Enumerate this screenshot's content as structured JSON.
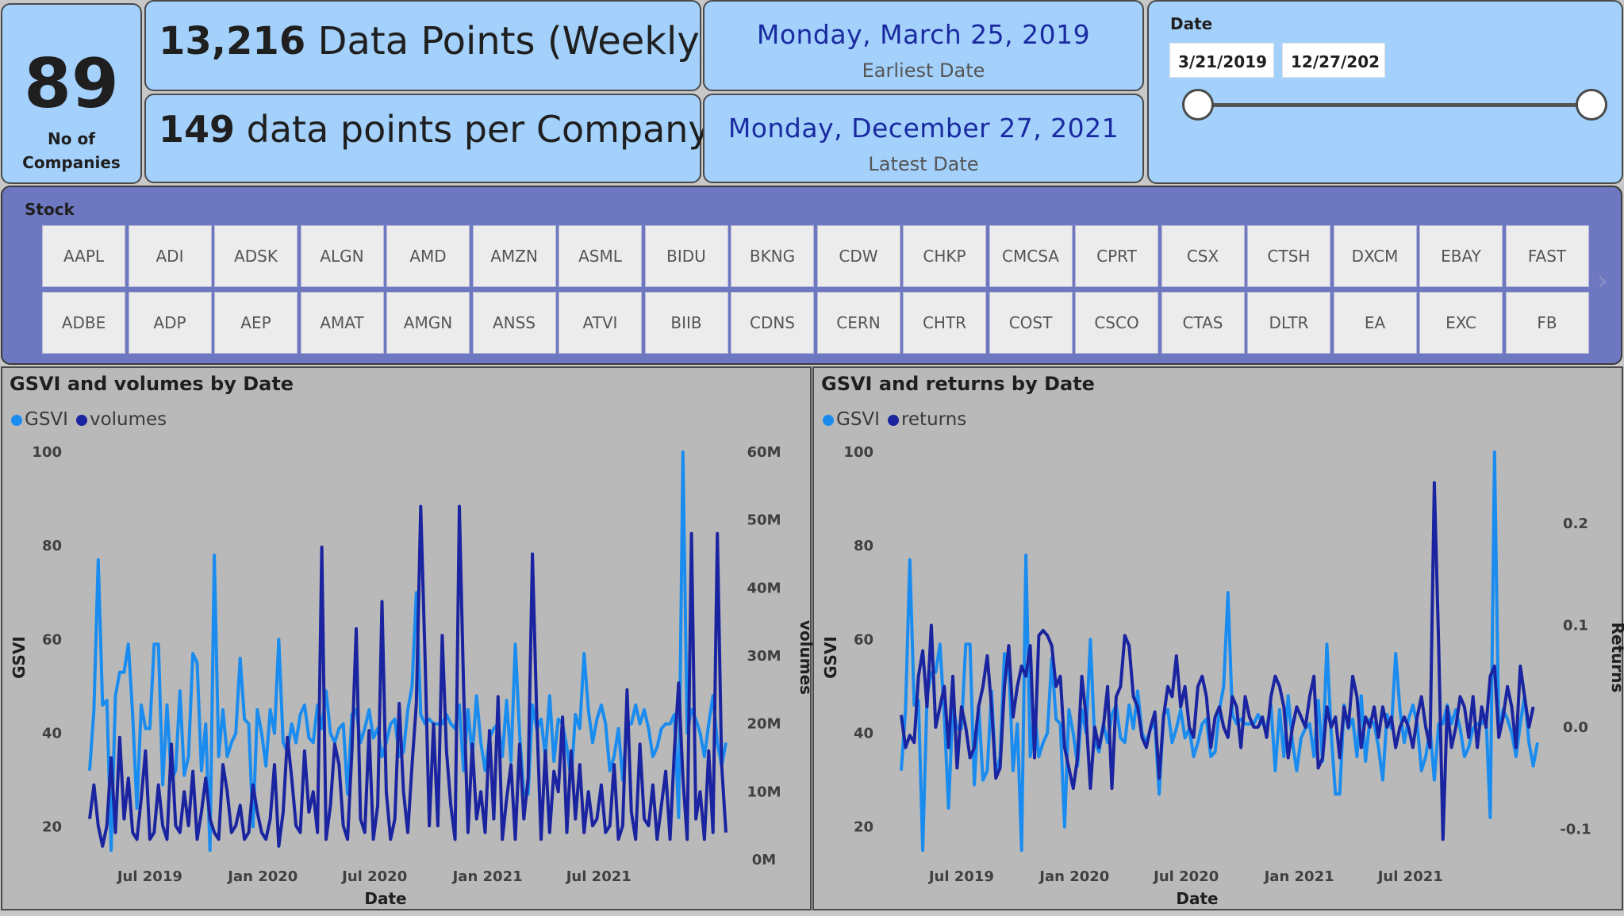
{
  "kpis": {
    "companies_value": "89",
    "companies_label": "No of Companies",
    "data_points_value": "13,216",
    "data_points_label": "Data Points (Weekly)",
    "per_company_value": "149",
    "per_company_label": "data points per Company",
    "earliest_date": "Monday, March 25, 2019",
    "earliest_label": "Earliest Date",
    "latest_date": "Monday, December 27, 2021",
    "latest_label": "Latest Date"
  },
  "date_slicer": {
    "label": "Date",
    "start": "3/21/2019",
    "end": "12/27/202",
    "range_fraction": [
      0.0,
      1.0
    ]
  },
  "stock_slicer": {
    "label": "Stock",
    "row1": [
      "AAPL",
      "ADI",
      "ADSK",
      "ALGN",
      "AMD",
      "AMZN",
      "ASML",
      "BIDU",
      "BKNG",
      "CDW",
      "CHKP",
      "CMCSA",
      "CPRT",
      "CSX",
      "CTSH",
      "DXCM",
      "EBAY",
      "FAST"
    ],
    "row2": [
      "ADBE",
      "ADP",
      "AEP",
      "AMAT",
      "AMGN",
      "ANSS",
      "ATVI",
      "BIIB",
      "CDNS",
      "CERN",
      "CHTR",
      "COST",
      "CSCO",
      "CTAS",
      "DLTR",
      "EA",
      "EXC",
      "FB"
    ],
    "next_icon": "chevron-right-icon"
  },
  "colors": {
    "gsvi": "#1a8cf0",
    "secondary": "#1a24a0",
    "card_bg": "#a3d1fc",
    "stock_bg": "#6e78c0"
  },
  "chart_data": [
    {
      "type": "line",
      "title": "GSVI and volumes by Date",
      "xlabel": "Date",
      "ylabel": "GSVI",
      "y2label": "volumes",
      "x_ticks": [
        "Jul 2019",
        "Jan 2020",
        "Jul 2020",
        "Jan 2021",
        "Jul 2021"
      ],
      "y_ticks": [
        "20",
        "40",
        "60",
        "80",
        "100"
      ],
      "y2_ticks": [
        "0M",
        "10M",
        "20M",
        "30M",
        "40M",
        "50M",
        "60M"
      ],
      "ylim": [
        13,
        100
      ],
      "y2lim": [
        0,
        60
      ],
      "x_start": "2019-03-25",
      "x_step_days": 7,
      "series": [
        {
          "name": "GSVI",
          "axis": "y",
          "values": [
            32,
            45,
            77,
            46,
            47,
            15,
            48,
            53,
            53,
            59,
            44,
            24,
            46,
            41,
            41,
            59,
            59,
            29,
            46,
            30,
            32,
            49,
            31,
            35,
            57,
            55,
            32,
            42,
            15,
            78,
            35,
            45,
            35,
            38,
            40,
            56,
            43,
            42,
            20,
            45,
            40,
            33,
            45,
            40,
            60,
            38,
            36,
            42,
            38,
            44,
            46,
            39,
            38,
            46,
            41,
            49,
            40,
            38,
            41,
            42,
            27,
            44,
            45,
            38,
            41,
            45,
            39,
            41,
            35,
            38,
            42,
            43,
            35,
            36,
            45,
            50,
            70,
            44,
            42,
            43,
            42,
            42,
            42,
            44,
            42,
            41,
            46,
            32,
            45,
            35,
            48,
            38,
            32,
            39,
            41,
            42,
            35,
            47,
            34,
            59,
            40,
            27,
            27,
            46,
            41,
            43,
            35,
            48,
            34,
            43,
            42,
            37,
            30,
            44,
            41,
            57,
            45,
            38,
            43,
            46,
            42,
            32,
            35,
            41,
            30,
            42,
            42,
            46,
            42,
            45,
            41,
            35,
            37,
            41,
            42,
            42,
            44,
            22,
            100,
            40,
            45,
            43,
            40,
            35,
            42,
            48,
            38,
            33,
            38
          ]
        },
        {
          "name": "volumes",
          "axis": "y2",
          "values": [
            6,
            11,
            5,
            2,
            5,
            15,
            4,
            18,
            6,
            12,
            4,
            3,
            9,
            16,
            3,
            4,
            11,
            5,
            3,
            17,
            5,
            4,
            10,
            5,
            13,
            3,
            7,
            12,
            6,
            4,
            3,
            14,
            10,
            4,
            5,
            8,
            3,
            4,
            11,
            7,
            4,
            3,
            6,
            14,
            2,
            7,
            18,
            12,
            5,
            4,
            16,
            7,
            10,
            4,
            46,
            3,
            8,
            17,
            14,
            5,
            3,
            16,
            34,
            6,
            4,
            19,
            3,
            8,
            38,
            10,
            3,
            6,
            23,
            10,
            4,
            14,
            23,
            52,
            30,
            5,
            20,
            5,
            33,
            16,
            8,
            3,
            52,
            25,
            4,
            17,
            6,
            10,
            4,
            19,
            6,
            24,
            3,
            9,
            14,
            3,
            17,
            6,
            12,
            45,
            21,
            3,
            16,
            4,
            13,
            10,
            21,
            4,
            16,
            6,
            14,
            4,
            10,
            5,
            6,
            11,
            4,
            5,
            14,
            3,
            5,
            25,
            7,
            3,
            17,
            6,
            5,
            11,
            3,
            8,
            13,
            3,
            16,
            26,
            12,
            3,
            48,
            6,
            10,
            3,
            16,
            4,
            48,
            14,
            4
          ]
        }
      ]
    },
    {
      "type": "line",
      "title": "GSVI and returns by Date",
      "xlabel": "Date",
      "ylabel": "GSVI",
      "y2label": "Returns",
      "x_ticks": [
        "Jul 2019",
        "Jan 2020",
        "Jul 2020",
        "Jan 2021",
        "Jul 2021"
      ],
      "y_ticks": [
        "20",
        "40",
        "60",
        "80",
        "100"
      ],
      "y2_ticks": [
        "-0.1",
        "0.0",
        "0.1",
        "0.2"
      ],
      "ylim": [
        13,
        100
      ],
      "y2lim": [
        -0.13,
        0.27
      ],
      "x_start": "2019-03-25",
      "x_step_days": 7,
      "series": [
        {
          "name": "GSVI",
          "axis": "y",
          "values": [
            32,
            45,
            77,
            46,
            47,
            15,
            48,
            53,
            53,
            59,
            44,
            24,
            46,
            41,
            41,
            59,
            59,
            29,
            46,
            30,
            32,
            49,
            31,
            35,
            57,
            55,
            32,
            42,
            15,
            78,
            35,
            45,
            35,
            38,
            40,
            56,
            43,
            42,
            20,
            45,
            40,
            33,
            45,
            40,
            60,
            38,
            36,
            42,
            38,
            44,
            46,
            39,
            38,
            46,
            41,
            49,
            40,
            38,
            41,
            42,
            27,
            44,
            45,
            38,
            41,
            45,
            39,
            41,
            35,
            38,
            42,
            43,
            35,
            36,
            45,
            50,
            70,
            44,
            42,
            43,
            42,
            42,
            42,
            44,
            42,
            41,
            46,
            32,
            45,
            35,
            48,
            38,
            32,
            39,
            41,
            42,
            35,
            47,
            34,
            59,
            40,
            27,
            27,
            46,
            41,
            43,
            35,
            48,
            34,
            43,
            42,
            37,
            30,
            44,
            41,
            57,
            45,
            38,
            43,
            46,
            42,
            32,
            35,
            41,
            30,
            42,
            42,
            46,
            42,
            45,
            41,
            35,
            37,
            41,
            42,
            42,
            44,
            22,
            100,
            40,
            45,
            43,
            40,
            35,
            42,
            48,
            38,
            33,
            38
          ]
        },
        {
          "name": "returns",
          "axis": "y2",
          "values": [
            0.012,
            -0.02,
            -0.008,
            -0.015,
            0.05,
            0.075,
            0.02,
            0.1,
            0.0,
            0.02,
            0.04,
            -0.02,
            0.05,
            -0.04,
            0.02,
            0.0,
            -0.03,
            -0.02,
            0.02,
            0.04,
            0.07,
            0.02,
            -0.05,
            -0.04,
            0.04,
            0.08,
            0.01,
            0.04,
            0.06,
            0.05,
            0.08,
            -0.03,
            0.09,
            0.095,
            0.09,
            0.08,
            0.04,
            0.05,
            -0.02,
            -0.04,
            -0.06,
            -0.03,
            0.05,
            0.01,
            -0.06,
            0.0,
            -0.02,
            0.0,
            0.04,
            -0.06,
            0.03,
            0.04,
            0.09,
            0.08,
            0.03,
            0.02,
            -0.01,
            -0.02,
            0.0,
            0.015,
            -0.05,
            0.01,
            0.04,
            0.03,
            0.07,
            0.02,
            0.04,
            0.0,
            -0.01,
            0.04,
            0.05,
            0.03,
            -0.02,
            0.01,
            0.02,
            0.0,
            -0.01,
            0.03,
            0.02,
            -0.02,
            0.03,
            0.01,
            0.0,
            0.0,
            0.01,
            -0.01,
            0.03,
            0.05,
            0.04,
            0.02,
            -0.03,
            0.0,
            0.02,
            0.01,
            0.0,
            0.03,
            0.05,
            -0.04,
            -0.03,
            0.02,
            0.0,
            0.01,
            -0.03,
            0.02,
            0.0,
            0.05,
            0.03,
            -0.02,
            0.01,
            0.0,
            0.02,
            -0.01,
            0.02,
            0.0,
            0.01,
            -0.02,
            0.0,
            0.01,
            0.0,
            -0.02,
            0.01,
            0.03,
            0.0,
            -0.02,
            0.24,
            0.08,
            -0.11,
            0.02,
            -0.02,
            0.0,
            0.03,
            0.02,
            -0.01,
            0.03,
            -0.02,
            0.02,
            0.0,
            0.05,
            0.06,
            -0.01,
            0.01,
            0.04,
            0.02,
            -0.02,
            0.06,
            0.03,
            0.0,
            0.02
          ]
        }
      ]
    }
  ]
}
